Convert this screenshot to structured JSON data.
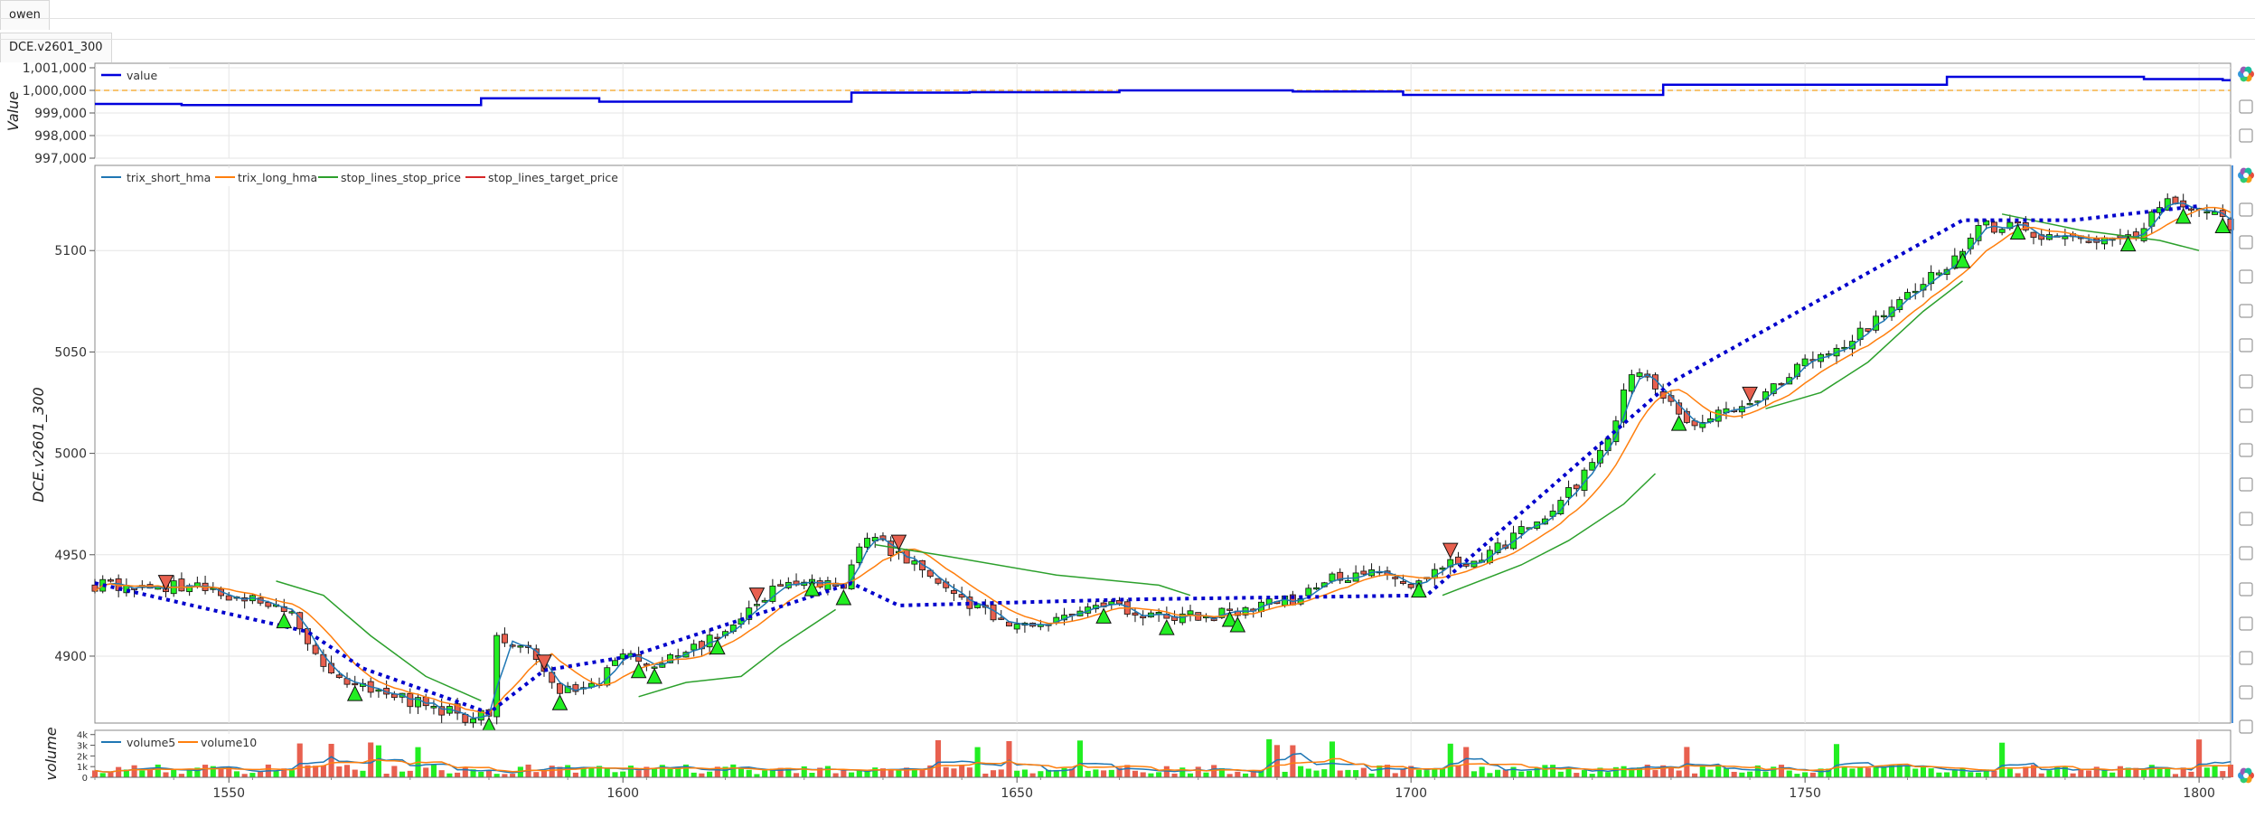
{
  "tabs": {
    "owen": "owen",
    "symbol": "DCE.v2601_300"
  },
  "colors": {
    "value": "#0000dd",
    "baseline": "#f5b041",
    "trix_short": "#1f77b4",
    "trix_long": "#ff7f0e",
    "stop": "#2ca02c",
    "target": "#d62728",
    "up": "#22ee22",
    "down": "#e8604f",
    "trend": "#0000cc",
    "grid": "#e6e6e6",
    "toolbar": "#9a9a9a"
  },
  "toolbar_icons": [
    "bokeh-logo-icon",
    "pan-icon",
    "more-icon",
    "bokeh-logo-icon",
    "pan-icon",
    "box-zoom-icon",
    "wheel-zoom-icon",
    "undo-icon",
    "redo-icon",
    "reset-icon",
    "save-icon",
    "hover-icon",
    "hover-icon",
    "hover-icon",
    "hover-icon",
    "hover-icon",
    "hover-icon",
    "hover-icon",
    "hover-icon",
    "crosshair-icon",
    "bokeh-logo-icon"
  ],
  "chart_data": [
    {
      "type": "line",
      "ylabel": "Value",
      "ylim": [
        997000,
        1001200
      ],
      "yticks": [
        "1,001,000",
        "1,000,000",
        "999,000",
        "998,000",
        "997,000"
      ],
      "ytick_values": [
        1001000,
        1000000,
        999000,
        998000,
        997000
      ],
      "baseline": 1000000,
      "legend": [
        "value"
      ],
      "series": [
        {
          "name": "value",
          "steps": [
            [
              1533,
              999400
            ],
            [
              1544,
              999350
            ],
            [
              1582,
              999650
            ],
            [
              1597,
              999500
            ],
            [
              1629,
              999900
            ],
            [
              1644,
              999920
            ],
            [
              1663,
              1000000
            ],
            [
              1685,
              999950
            ],
            [
              1699,
              999800
            ],
            [
              1732,
              1000250
            ],
            [
              1768,
              1000600
            ],
            [
              1793,
              1000500
            ],
            [
              1803,
              1000450
            ]
          ]
        }
      ]
    },
    {
      "type": "candlestick",
      "ylabel": "DCE.v2601_300",
      "xlim": [
        1533,
        1804
      ],
      "ylim": [
        4867,
        5142
      ],
      "xticks": [
        1550,
        1600,
        1650,
        1700,
        1750,
        1800
      ],
      "xtick_labels": [
        "1550",
        "1600",
        "1650",
        "1700",
        "1750",
        "1800"
      ],
      "yticks": [
        4900,
        4950,
        5000,
        5050,
        5100
      ],
      "ytick_labels": [
        "4900",
        "4950",
        "5000",
        "5050",
        "5100"
      ],
      "legend": [
        "trix_short_hma",
        "trix_long_hma",
        "stop_lines_stop_price",
        "stop_lines_target_price"
      ],
      "close_anchors": [
        [
          1533,
          4935
        ],
        [
          1545,
          4934
        ],
        [
          1553,
          4928
        ],
        [
          1558,
          4922
        ],
        [
          1562,
          4892
        ],
        [
          1567,
          4885
        ],
        [
          1573,
          4878
        ],
        [
          1580,
          4870
        ],
        [
          1583,
          4872
        ],
        [
          1584,
          4910
        ],
        [
          1588,
          4902
        ],
        [
          1592,
          4882
        ],
        [
          1597,
          4888
        ],
        [
          1600,
          4900
        ],
        [
          1605,
          4897
        ],
        [
          1610,
          4905
        ],
        [
          1615,
          4920
        ],
        [
          1620,
          4935
        ],
        [
          1625,
          4935
        ],
        [
          1628,
          4935
        ],
        [
          1631,
          4960
        ],
        [
          1635,
          4950
        ],
        [
          1640,
          4935
        ],
        [
          1645,
          4923
        ],
        [
          1650,
          4914
        ],
        [
          1654,
          4918
        ],
        [
          1660,
          4927
        ],
        [
          1665,
          4922
        ],
        [
          1670,
          4920
        ],
        [
          1675,
          4920
        ],
        [
          1680,
          4925
        ],
        [
          1685,
          4928
        ],
        [
          1690,
          4938
        ],
        [
          1694,
          4942
        ],
        [
          1697,
          4940
        ],
        [
          1700,
          4935
        ],
        [
          1703,
          4945
        ],
        [
          1707,
          4946
        ],
        [
          1712,
          4955
        ],
        [
          1717,
          4970
        ],
        [
          1721,
          4985
        ],
        [
          1725,
          5005
        ],
        [
          1728,
          5040
        ],
        [
          1731,
          5032
        ],
        [
          1735,
          5015
        ],
        [
          1740,
          5020
        ],
        [
          1745,
          5030
        ],
        [
          1750,
          5045
        ],
        [
          1755,
          5055
        ],
        [
          1760,
          5068
        ],
        [
          1765,
          5085
        ],
        [
          1769,
          5095
        ],
        [
          1772,
          5112
        ],
        [
          1777,
          5112
        ],
        [
          1782,
          5105
        ],
        [
          1787,
          5103
        ],
        [
          1791,
          5105
        ],
        [
          1796,
          5125
        ],
        [
          1800,
          5120
        ],
        [
          1804,
          5113
        ]
      ],
      "trend_line": [
        [
          1533,
          4936
        ],
        [
          1560,
          4912
        ],
        [
          1567,
          4894
        ],
        [
          1583,
          4872
        ],
        [
          1590,
          4893
        ],
        [
          1601,
          4900
        ],
        [
          1629,
          4936
        ],
        [
          1635,
          4925
        ],
        [
          1665,
          4928
        ],
        [
          1702,
          4930
        ],
        [
          1733,
          5035
        ],
        [
          1770,
          5115
        ],
        [
          1784,
          5115
        ],
        [
          1800,
          5122
        ]
      ],
      "stop_segments": [
        [
          [
            1556,
            4937
          ],
          [
            1562,
            4930
          ],
          [
            1568,
            4910
          ],
          [
            1575,
            4890
          ],
          [
            1582,
            4878
          ]
        ],
        [
          [
            1602,
            4880
          ],
          [
            1608,
            4887
          ],
          [
            1615,
            4890
          ],
          [
            1620,
            4905
          ],
          [
            1627,
            4923
          ]
        ],
        [
          [
            1632,
            4955
          ],
          [
            1640,
            4950
          ],
          [
            1655,
            4940
          ],
          [
            1668,
            4935
          ],
          [
            1672,
            4930
          ]
        ],
        [
          [
            1704,
            4930
          ],
          [
            1714,
            4945
          ],
          [
            1720,
            4957
          ],
          [
            1727,
            4975
          ],
          [
            1731,
            4990
          ]
        ],
        [
          [
            1745,
            5022
          ],
          [
            1752,
            5030
          ],
          [
            1758,
            5045
          ],
          [
            1765,
            5070
          ],
          [
            1770,
            5085
          ]
        ],
        [
          [
            1775,
            5118
          ],
          [
            1785,
            5110
          ],
          [
            1795,
            5105
          ],
          [
            1800,
            5100
          ]
        ]
      ],
      "buy_signals": [
        1542,
        1590,
        1617,
        1635,
        1705,
        1743
      ],
      "sell_signals": [
        1557,
        1566,
        1583,
        1592,
        1602,
        1604,
        1612,
        1624,
        1628,
        1661,
        1669,
        1677,
        1678,
        1701,
        1734,
        1770,
        1777,
        1791,
        1798,
        1803
      ],
      "volume": {
        "ylabel": "volume",
        "legend": [
          "volume5",
          "volume10"
        ],
        "yticks": [
          "4k",
          "3k",
          "2k",
          "1k",
          "0"
        ],
        "ytick_values": [
          4000,
          3000,
          2000,
          1000,
          0
        ],
        "ylim": [
          0,
          4400
        ]
      }
    }
  ]
}
